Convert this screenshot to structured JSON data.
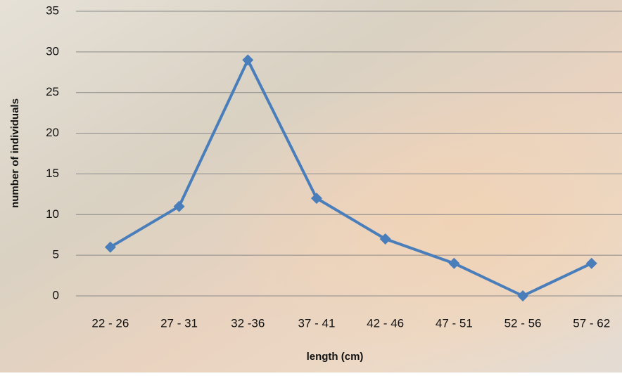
{
  "chart_data": {
    "type": "line",
    "x_label": "length (cm)",
    "y_label": "number of individuals",
    "categories": [
      "22 - 26",
      "27 - 31",
      "32 -36",
      "37 - 41",
      "42 - 46",
      "47 - 51",
      "52 - 56",
      "57 - 62"
    ],
    "series": [
      {
        "color": "#4a7ebb",
        "values": [
          6,
          11,
          29,
          12,
          7,
          4,
          0,
          4
        ]
      }
    ],
    "ylim": [
      0,
      35
    ],
    "yticks": [
      0,
      5,
      10,
      15,
      20,
      25,
      30,
      35
    ],
    "grid": true
  }
}
